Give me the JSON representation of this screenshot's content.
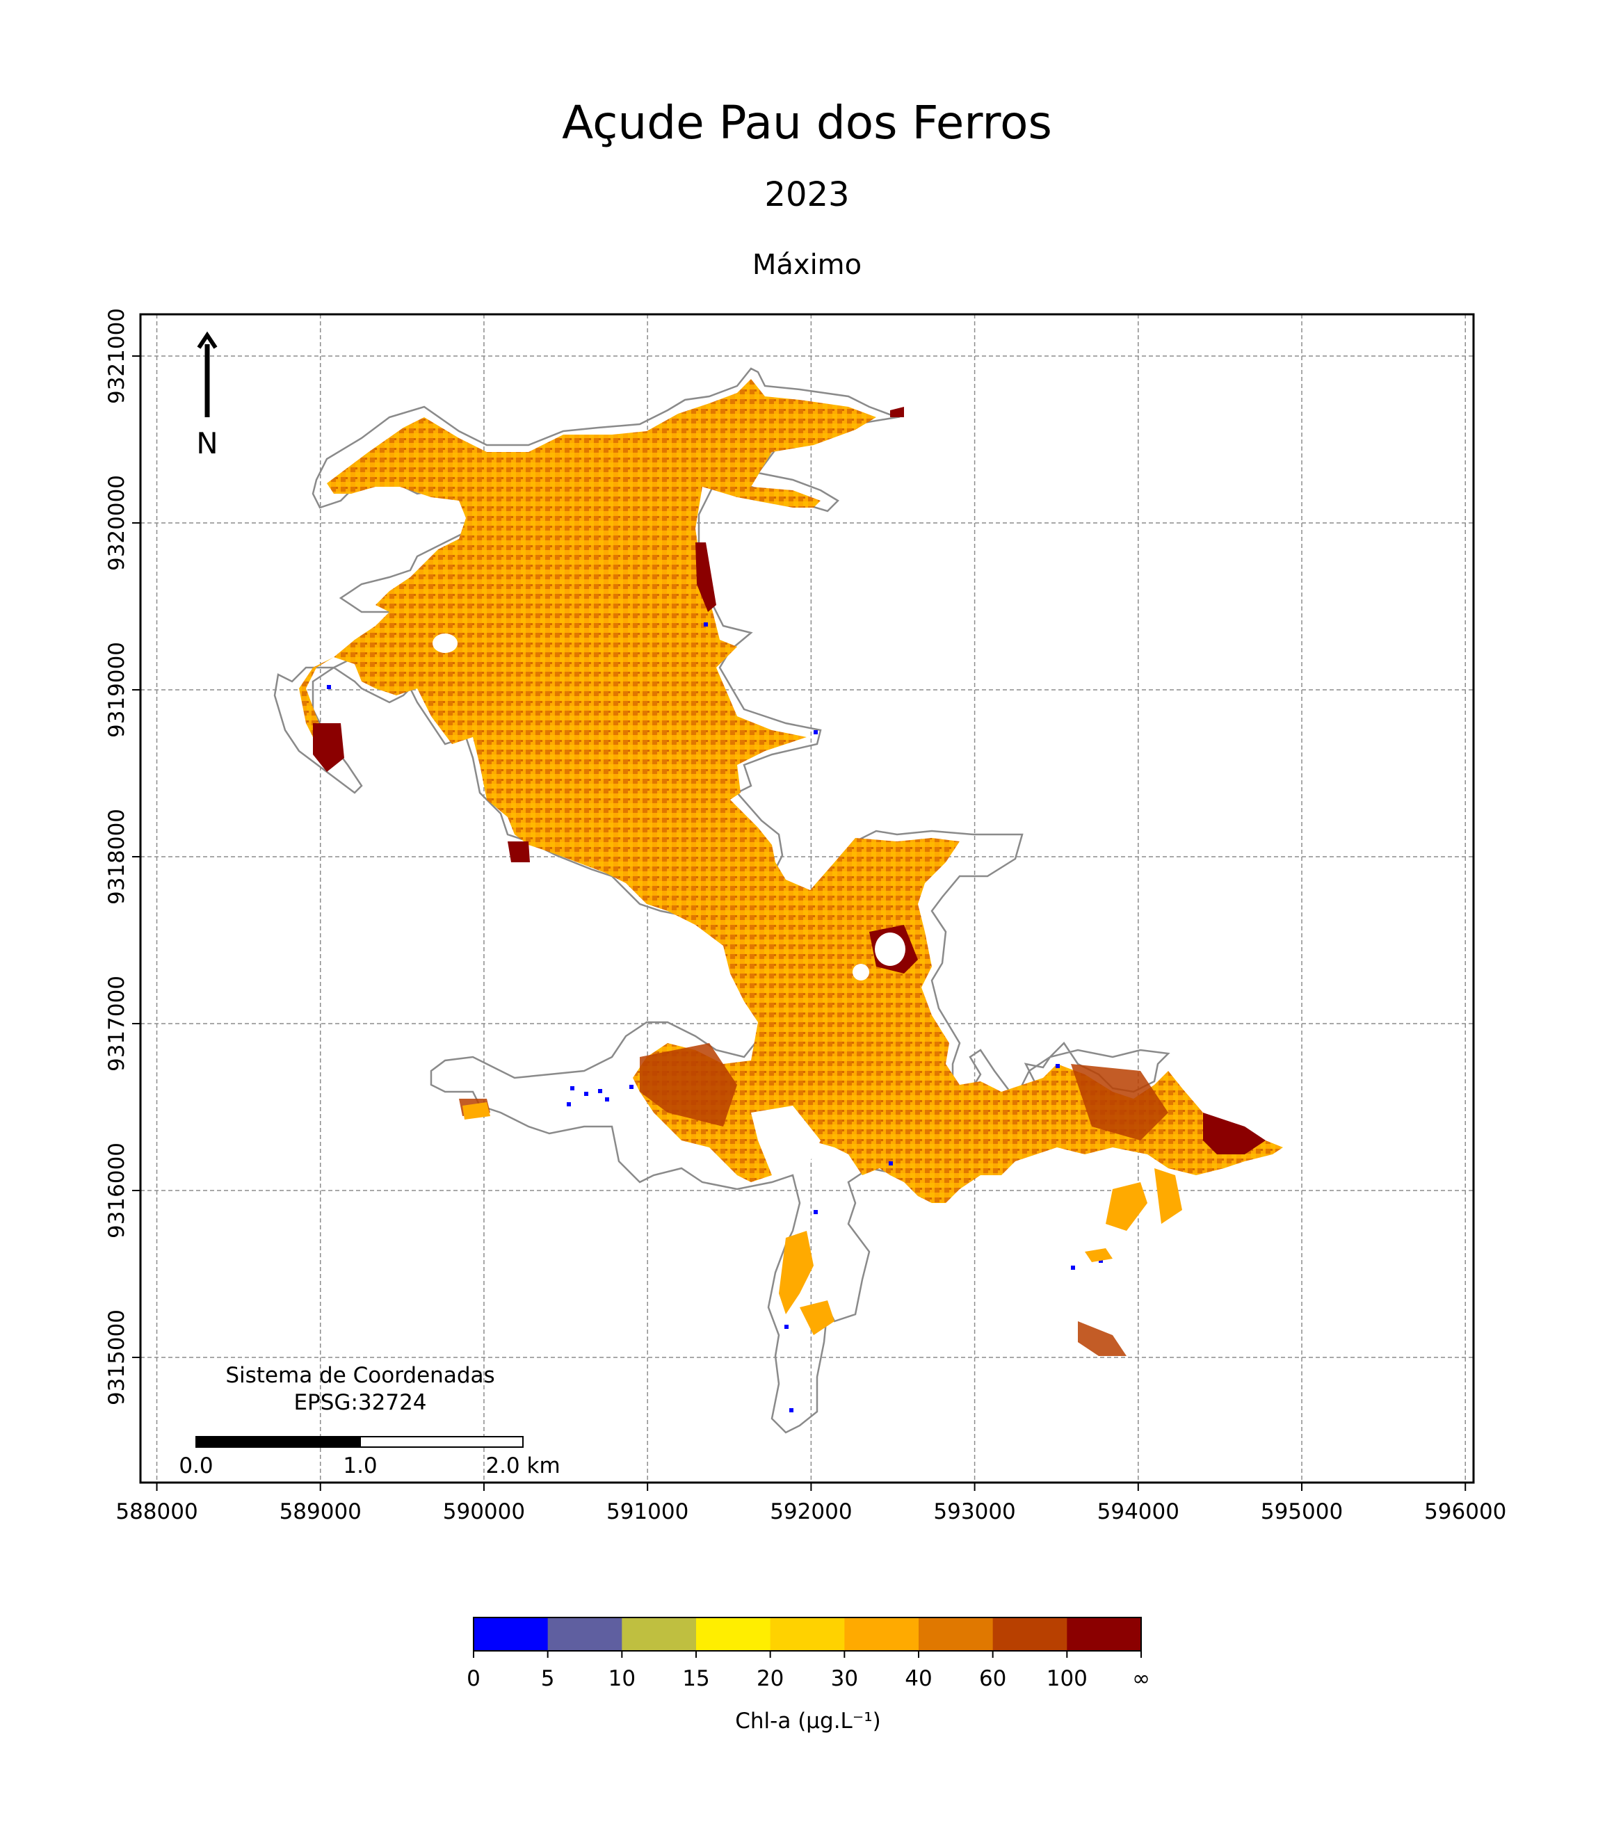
{
  "title": "Açude Pau dos Ferros",
  "subtitle": "2023",
  "statistic": "Máximo",
  "north_arrow_label": "N",
  "crs_box": {
    "line1": "Sistema de Coordenadas",
    "line2": "EPSG:32724"
  },
  "scale_bar": {
    "labels": [
      "0.0",
      "1.0",
      "2.0 km"
    ]
  },
  "axes": {
    "x_ticks": [
      "588000",
      "589000",
      "590000",
      "591000",
      "592000",
      "593000",
      "594000",
      "595000",
      "596000"
    ],
    "y_ticks": [
      "9321000",
      "9320000",
      "9319000",
      "9318000",
      "9317000",
      "9316000",
      "9315000"
    ],
    "xlim": [
      587900,
      596050
    ],
    "ylim": [
      9314250,
      9321250
    ],
    "grid": true
  },
  "colorbar": {
    "label": "Chl-a (μg.L⁻¹)",
    "bounds": [
      "0",
      "5",
      "10",
      "15",
      "20",
      "30",
      "40",
      "60",
      "100",
      "∞"
    ],
    "colors": [
      "#0000ff",
      "#5f5fa0",
      "#bfbf40",
      "#ffee00",
      "#ffd200",
      "#ffaa00",
      "#e07800",
      "#b84000",
      "#8b0000"
    ]
  },
  "chart_data": {
    "type": "heatmap",
    "description_units": "UTM easting / northing (EPSG:32724)",
    "dominant_classes": [
      "30–40",
      "40–60"
    ],
    "classes": [
      "0–5",
      "5–10",
      "10–15",
      "15–20",
      "20–30",
      "30–40",
      "40–60",
      "60–100",
      "≥100"
    ]
  }
}
